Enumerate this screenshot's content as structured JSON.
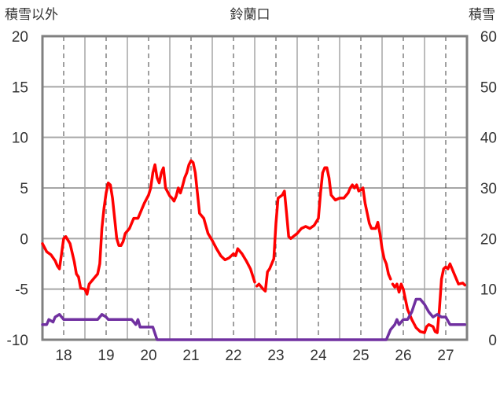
{
  "chart_data": {
    "type": "line",
    "title": "鈴蘭口",
    "ylabel_left": "積雪以外",
    "ylabel_right": "積雪",
    "ylim_left": [
      -10,
      20
    ],
    "ylim_right": [
      0,
      60
    ],
    "yticks_left": [
      "20",
      "15",
      "10",
      "5",
      "0",
      "-5",
      "-10"
    ],
    "yticks_right": [
      "60",
      "50",
      "40",
      "30",
      "20",
      "10",
      "0"
    ],
    "xlim": [
      17.5,
      27.5
    ],
    "xticks": [
      "18",
      "19",
      "20",
      "21",
      "22",
      "23",
      "24",
      "25",
      "26",
      "27"
    ],
    "grid": true,
    "series": [
      {
        "color": "#ff0000",
        "axis": "left",
        "values": [
          [
            17.5,
            -0.5
          ],
          [
            17.6,
            -1.3
          ],
          [
            17.7,
            -1.6
          ],
          [
            17.8,
            -2.2
          ],
          [
            17.85,
            -2.7
          ],
          [
            17.9,
            -3.0
          ],
          [
            17.95,
            -1.5
          ],
          [
            18.0,
            0.0
          ],
          [
            18.05,
            0.2
          ],
          [
            18.15,
            -0.5
          ],
          [
            18.25,
            -2.3
          ],
          [
            18.3,
            -3.5
          ],
          [
            18.35,
            -3.8
          ],
          [
            18.4,
            -4.9
          ],
          [
            18.5,
            -5.0
          ],
          [
            18.55,
            -5.5
          ],
          [
            18.6,
            -4.5
          ],
          [
            18.7,
            -4.0
          ],
          [
            18.8,
            -3.5
          ],
          [
            18.85,
            -2.5
          ],
          [
            18.9,
            1.0
          ],
          [
            18.95,
            3.0
          ],
          [
            19.0,
            4.5
          ],
          [
            19.05,
            5.5
          ],
          [
            19.1,
            5.3
          ],
          [
            19.15,
            4.0
          ],
          [
            19.2,
            2.0
          ],
          [
            19.25,
            0.0
          ],
          [
            19.3,
            -0.7
          ],
          [
            19.35,
            -0.7
          ],
          [
            19.4,
            -0.3
          ],
          [
            19.45,
            0.5
          ],
          [
            19.55,
            1.0
          ],
          [
            19.6,
            1.5
          ],
          [
            19.65,
            2.0
          ],
          [
            19.75,
            2.0
          ],
          [
            19.8,
            2.5
          ],
          [
            19.85,
            3.0
          ],
          [
            19.9,
            3.5
          ],
          [
            20.0,
            4.3
          ],
          [
            20.05,
            5.0
          ],
          [
            20.1,
            6.5
          ],
          [
            20.15,
            7.3
          ],
          [
            20.2,
            6.0
          ],
          [
            20.25,
            5.5
          ],
          [
            20.3,
            6.5
          ],
          [
            20.35,
            7.0
          ],
          [
            20.4,
            5.0
          ],
          [
            20.5,
            4.2
          ],
          [
            20.55,
            4.0
          ],
          [
            20.6,
            3.7
          ],
          [
            20.65,
            4.2
          ],
          [
            20.7,
            5.0
          ],
          [
            20.75,
            4.5
          ],
          [
            20.8,
            5.2
          ],
          [
            20.85,
            6.0
          ],
          [
            20.9,
            6.5
          ],
          [
            20.95,
            7.3
          ],
          [
            21.0,
            7.7
          ],
          [
            21.05,
            7.5
          ],
          [
            21.1,
            6.5
          ],
          [
            21.15,
            4.5
          ],
          [
            21.2,
            2.5
          ],
          [
            21.3,
            2.0
          ],
          [
            21.4,
            0.5
          ],
          [
            21.5,
            -0.2
          ],
          [
            21.6,
            -1.0
          ],
          [
            21.7,
            -1.7
          ],
          [
            21.8,
            -2.1
          ],
          [
            21.9,
            -1.9
          ],
          [
            22.0,
            -1.5
          ],
          [
            22.05,
            -1.7
          ],
          [
            22.1,
            -1.0
          ],
          [
            22.2,
            -1.5
          ],
          [
            22.3,
            -2.2
          ],
          [
            22.4,
            -3.0
          ],
          [
            22.5,
            -4.3
          ]
        ]
      },
      {
        "color": "#ff0000",
        "axis": "left",
        "values": [
          [
            22.55,
            -4.7
          ],
          [
            22.6,
            -4.5
          ],
          [
            22.7,
            -5.0
          ],
          [
            22.75,
            -5.2
          ],
          [
            22.8,
            -3.3
          ],
          [
            22.85,
            -3.0
          ],
          [
            22.9,
            -2.5
          ],
          [
            22.95,
            -2.0
          ],
          [
            23.0,
            1.5
          ],
          [
            23.05,
            4.0
          ],
          [
            23.15,
            4.3
          ],
          [
            23.2,
            4.7
          ],
          [
            23.25,
            2.5
          ],
          [
            23.3,
            0.2
          ],
          [
            23.35,
            0.0
          ],
          [
            23.5,
            0.5
          ],
          [
            23.6,
            1.0
          ],
          [
            23.7,
            1.2
          ],
          [
            23.8,
            1.0
          ],
          [
            23.9,
            1.3
          ],
          [
            24.0,
            2.0
          ],
          [
            24.05,
            4.5
          ],
          [
            24.1,
            6.5
          ],
          [
            24.15,
            7.0
          ],
          [
            24.2,
            7.0
          ],
          [
            24.25,
            6.0
          ],
          [
            24.3,
            4.3
          ],
          [
            24.4,
            3.8
          ],
          [
            24.5,
            4.0
          ],
          [
            24.6,
            4.0
          ],
          [
            24.7,
            4.5
          ],
          [
            24.75,
            5.0
          ],
          [
            24.8,
            5.3
          ],
          [
            24.85,
            5.0
          ],
          [
            24.9,
            5.3
          ],
          [
            24.95,
            4.7
          ],
          [
            25.0,
            4.8
          ],
          [
            25.05,
            5.0
          ],
          [
            25.1,
            3.5
          ],
          [
            25.2,
            1.5
          ],
          [
            25.25,
            1.0
          ],
          [
            25.35,
            1.0
          ],
          [
            25.4,
            1.6
          ],
          [
            25.45,
            0.5
          ],
          [
            25.5,
            -1.0
          ],
          [
            25.55,
            -2.0
          ],
          [
            25.6,
            -2.5
          ],
          [
            25.65,
            -3.5
          ],
          [
            25.7,
            -4.0
          ]
        ]
      },
      {
        "color": "#ff0000",
        "axis": "left",
        "values": [
          [
            25.75,
            -4.5
          ],
          [
            25.8,
            -4.8
          ],
          [
            25.85,
            -4.5
          ],
          [
            25.9,
            -5.3
          ],
          [
            25.95,
            -4.5
          ],
          [
            26.0,
            -5.0
          ],
          [
            26.1,
            -7.0
          ],
          [
            26.2,
            -8.0
          ],
          [
            26.3,
            -8.8
          ],
          [
            26.4,
            -9.2
          ],
          [
            26.5,
            -9.3
          ],
          [
            26.55,
            -8.7
          ],
          [
            26.6,
            -8.5
          ],
          [
            26.7,
            -8.7
          ],
          [
            26.75,
            -9.2
          ],
          [
            26.8,
            -9.3
          ],
          [
            26.85,
            -7.0
          ],
          [
            26.9,
            -4.0
          ],
          [
            26.95,
            -3.0
          ],
          [
            27.0,
            -2.8
          ],
          [
            27.05,
            -3.0
          ],
          [
            27.1,
            -2.5
          ],
          [
            27.2,
            -3.5
          ],
          [
            27.3,
            -4.5
          ],
          [
            27.4,
            -4.4
          ],
          [
            27.45,
            -4.6
          ]
        ]
      },
      {
        "color": "#7030a0",
        "axis": "right",
        "values": [
          [
            17.5,
            3.0
          ],
          [
            17.6,
            3.0
          ],
          [
            17.65,
            4.0
          ],
          [
            17.75,
            3.5
          ],
          [
            17.8,
            4.5
          ],
          [
            17.9,
            5.0
          ],
          [
            18.0,
            4.0
          ],
          [
            18.5,
            4.0
          ],
          [
            18.8,
            4.0
          ],
          [
            18.9,
            5.0
          ],
          [
            19.0,
            4.5
          ],
          [
            19.05,
            4.0
          ],
          [
            19.6,
            4.0
          ],
          [
            19.7,
            3.0
          ],
          [
            19.75,
            4.0
          ],
          [
            19.8,
            2.5
          ],
          [
            20.1,
            2.5
          ],
          [
            20.2,
            0.0
          ],
          [
            25.6,
            0.0
          ],
          [
            25.7,
            2.0
          ],
          [
            25.8,
            3.0
          ],
          [
            25.85,
            4.0
          ],
          [
            25.9,
            3.0
          ],
          [
            26.0,
            4.0
          ],
          [
            26.1,
            4.0
          ],
          [
            26.2,
            5.5
          ],
          [
            26.3,
            8.0
          ],
          [
            26.4,
            8.0
          ],
          [
            26.5,
            7.0
          ],
          [
            26.6,
            5.5
          ],
          [
            26.7,
            4.5
          ],
          [
            26.8,
            5.0
          ],
          [
            26.9,
            4.5
          ],
          [
            27.0,
            4.5
          ],
          [
            27.1,
            3.0
          ],
          [
            27.45,
            3.0
          ]
        ]
      }
    ]
  }
}
